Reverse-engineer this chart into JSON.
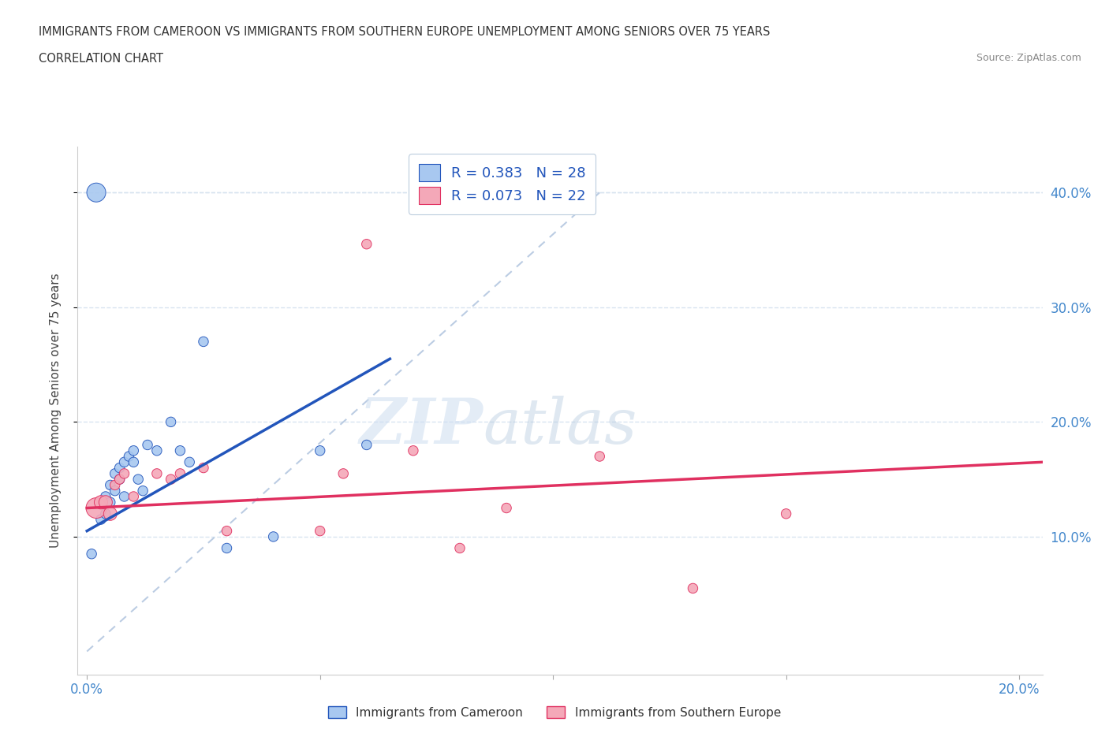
{
  "title_line1": "IMMIGRANTS FROM CAMEROON VS IMMIGRANTS FROM SOUTHERN EUROPE UNEMPLOYMENT AMONG SENIORS OVER 75 YEARS",
  "title_line2": "CORRELATION CHART",
  "source": "Source: ZipAtlas.com",
  "ylabel": "Unemployment Among Seniors over 75 years",
  "legend_label1": "Immigrants from Cameroon",
  "legend_label2": "Immigrants from Southern Europe",
  "R1": 0.383,
  "N1": 28,
  "R2": 0.073,
  "N2": 22,
  "color1": "#a8c8f0",
  "color2": "#f4a8b8",
  "line1_color": "#2255bb",
  "line2_color": "#e03060",
  "dashed_line_color": "#b0c4de",
  "xlim": [
    -0.002,
    0.205
  ],
  "ylim": [
    -0.02,
    0.44
  ],
  "xticks": [
    0.0,
    0.05,
    0.1,
    0.15,
    0.2
  ],
  "xticklabels": [
    "0.0%",
    "",
    "",
    "",
    "20.0%"
  ],
  "yticks_left": [],
  "yticks_right": [
    0.1,
    0.2,
    0.3,
    0.4
  ],
  "yticklabels_right": [
    "10.0%",
    "20.0%",
    "30.0%",
    "40.0%"
  ],
  "cameroon_x": [
    0.001,
    0.003,
    0.004,
    0.004,
    0.005,
    0.005,
    0.006,
    0.006,
    0.007,
    0.007,
    0.008,
    0.008,
    0.009,
    0.01,
    0.01,
    0.011,
    0.012,
    0.013,
    0.015,
    0.018,
    0.02,
    0.022,
    0.025,
    0.03,
    0.04,
    0.05,
    0.06,
    0.002
  ],
  "cameroon_y": [
    0.085,
    0.115,
    0.12,
    0.135,
    0.13,
    0.145,
    0.14,
    0.155,
    0.15,
    0.16,
    0.135,
    0.165,
    0.17,
    0.165,
    0.175,
    0.15,
    0.14,
    0.18,
    0.175,
    0.2,
    0.175,
    0.165,
    0.27,
    0.09,
    0.1,
    0.175,
    0.18,
    0.4
  ],
  "cameroon_sizes": [
    80,
    80,
    80,
    80,
    80,
    80,
    80,
    80,
    80,
    80,
    80,
    80,
    80,
    80,
    80,
    80,
    80,
    80,
    80,
    80,
    80,
    80,
    80,
    80,
    80,
    80,
    80,
    300
  ],
  "southern_x": [
    0.002,
    0.003,
    0.004,
    0.005,
    0.006,
    0.007,
    0.008,
    0.01,
    0.015,
    0.018,
    0.02,
    0.025,
    0.03,
    0.05,
    0.055,
    0.06,
    0.07,
    0.08,
    0.09,
    0.11,
    0.13,
    0.15
  ],
  "southern_y": [
    0.125,
    0.13,
    0.13,
    0.12,
    0.145,
    0.15,
    0.155,
    0.135,
    0.155,
    0.15,
    0.155,
    0.16,
    0.105,
    0.105,
    0.155,
    0.355,
    0.175,
    0.09,
    0.125,
    0.17,
    0.055,
    0.12
  ],
  "southern_sizes": [
    350,
    150,
    150,
    150,
    80,
    80,
    80,
    80,
    80,
    80,
    80,
    80,
    80,
    80,
    80,
    80,
    80,
    80,
    80,
    80,
    80,
    80
  ],
  "watermark_zip": "ZIP",
  "watermark_atlas": "atlas",
  "background_color": "#ffffff",
  "grid_color": "#d8e4f0",
  "blue_line_x": [
    0.0,
    0.065
  ],
  "blue_line_y": [
    0.105,
    0.255
  ],
  "pink_line_x": [
    0.0,
    0.205
  ],
  "pink_line_y": [
    0.125,
    0.165
  ]
}
